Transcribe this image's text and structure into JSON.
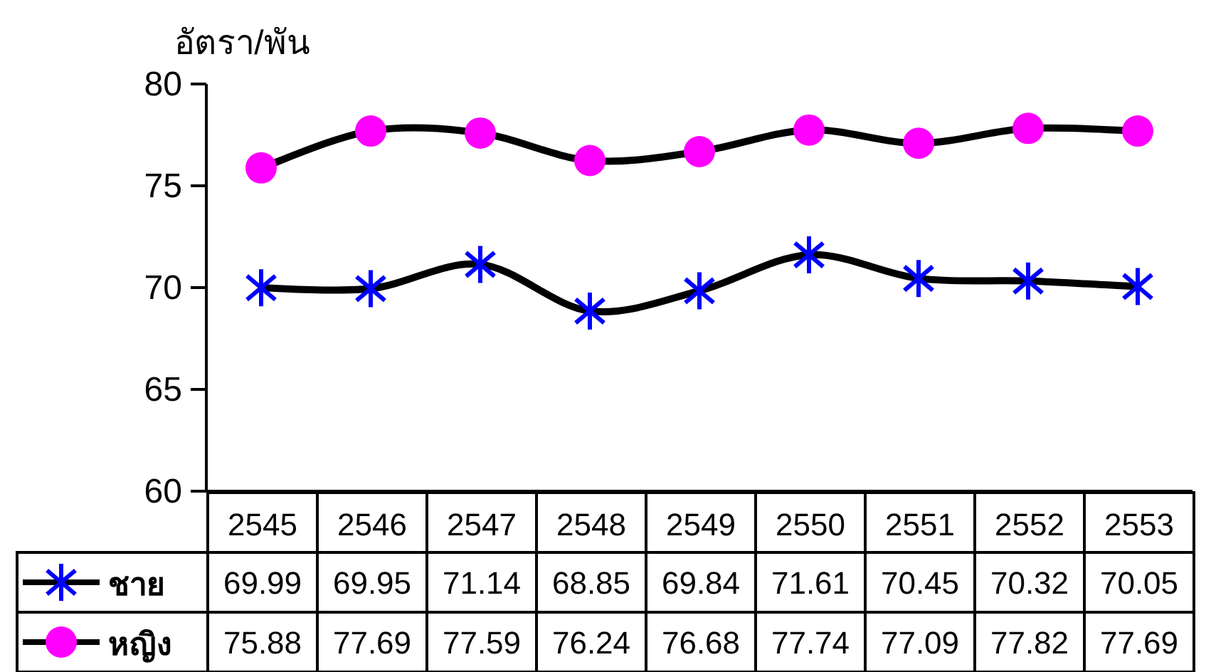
{
  "chart_data": {
    "type": "line",
    "ylabel": "อัตรา/พัน",
    "categories": [
      "2545",
      "2546",
      "2547",
      "2548",
      "2549",
      "2550",
      "2551",
      "2552",
      "2553"
    ],
    "series": [
      {
        "name": "ชาย",
        "color": "#0000ff",
        "marker": "cross",
        "values": [
          69.99,
          69.95,
          71.14,
          68.85,
          69.84,
          71.61,
          70.45,
          70.32,
          70.05
        ]
      },
      {
        "name": "หญิง",
        "color": "#ff00ff",
        "marker": "circle",
        "values": [
          75.88,
          77.69,
          77.59,
          76.24,
          76.68,
          77.74,
          77.09,
          77.82,
          77.69
        ]
      }
    ],
    "ylim": [
      60,
      80
    ],
    "yticks": [
      60,
      65,
      70,
      75,
      80
    ],
    "legend": "bottom",
    "data_labels": true
  }
}
